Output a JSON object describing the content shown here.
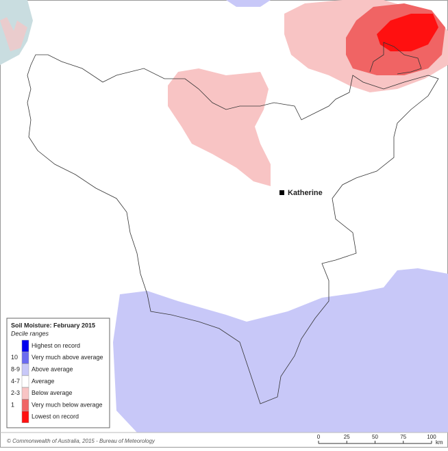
{
  "map": {
    "place": "Katherine"
  },
  "legend": {
    "title": "Soil Moisture: February 2015",
    "subtitle": "Decile ranges",
    "items": [
      {
        "label": "Highest on record",
        "color": "#0000ee"
      },
      {
        "code": "10",
        "label": "Very much above average",
        "color": "#6b6bf0"
      },
      {
        "code": "8-9",
        "label": "Above average",
        "color": "#c8c8f8"
      },
      {
        "code": "4-7",
        "label": "Average",
        "color": "#ffffff"
      },
      {
        "code": "2-3",
        "label": "Below average",
        "color": "#f8c4c4"
      },
      {
        "code": "1",
        "label": "Very much below average",
        "color": "#f06464"
      },
      {
        "label": "Lowest on record",
        "color": "#ff1010"
      }
    ]
  },
  "footer": {
    "copyright": "© Commonwealth of Australia, 2015 - Bureau of Meteorology",
    "scale": {
      "ticks": [
        "0",
        "25",
        "50",
        "75",
        "100"
      ],
      "unit": "km"
    }
  }
}
